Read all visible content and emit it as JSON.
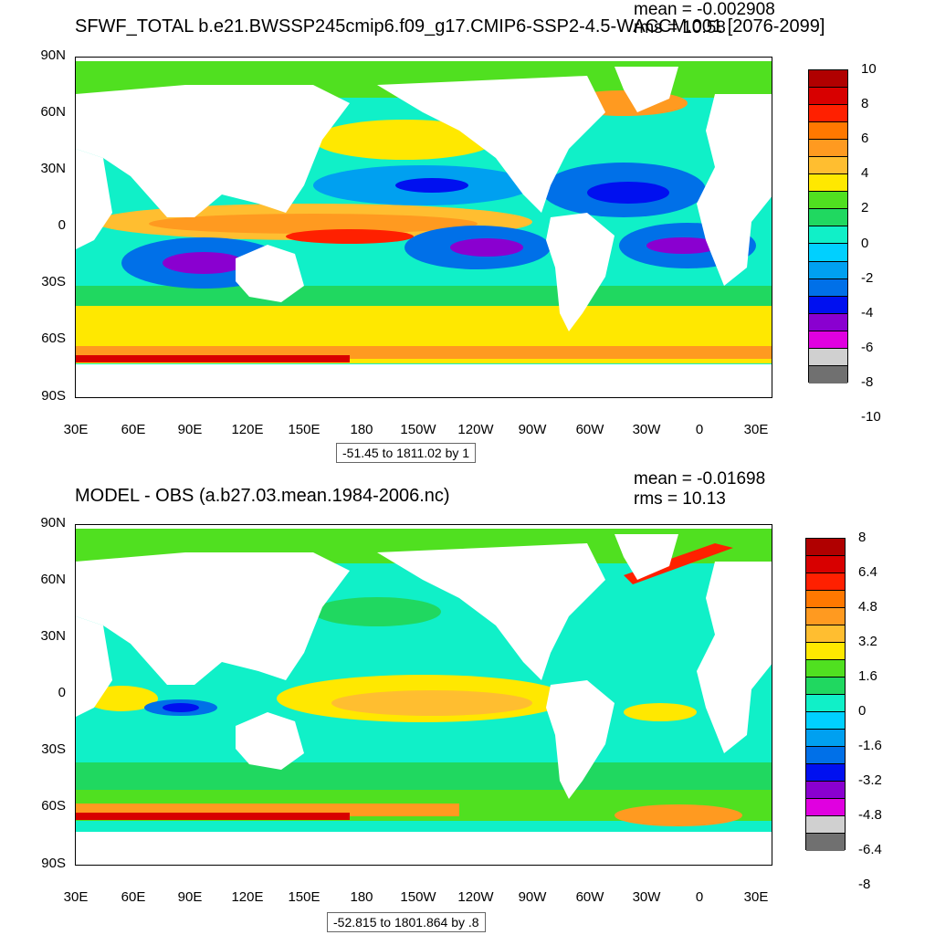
{
  "panels": [
    {
      "title": "SFWF_TOTAL b.e21.BWSSP245cmip6.f09_g17.CMIP6-SSP2-4.5-WACCM.001 [2076-2099]",
      "mean": "mean = -0.002908",
      "rms": "rms = 10.58",
      "range": "-51.45 to 1811.02 by 1",
      "colorbar": {
        "labels": [
          "10",
          "8",
          "6",
          "4",
          "2",
          "0",
          "-2",
          "-4",
          "-6",
          "-8",
          "-10"
        ],
        "colors": [
          "#b00000",
          "#d80000",
          "#ff2000",
          "#ff7800",
          "#ff9a20",
          "#ffbe30",
          "#ffe800",
          "#50e020",
          "#20d860",
          "#10f0c8",
          "#00d0ff",
          "#00a0f0",
          "#0070e8",
          "#0010f0",
          "#8a00d0",
          "#e000e0",
          "#d0d0d0",
          "#707070"
        ]
      },
      "lat_labels": [
        "90N",
        "60N",
        "30N",
        "0",
        "30S",
        "60S",
        "90S"
      ],
      "lon_labels": [
        "30E",
        "60E",
        "90E",
        "120E",
        "150E",
        "180",
        "150W",
        "120W",
        "90W",
        "60W",
        "30W",
        "0",
        "30E"
      ]
    },
    {
      "title": "MODEL - OBS (a.b27.03.mean.1984-2006.nc)",
      "mean": "mean = -0.01698",
      "rms": "rms = 10.13",
      "range": "-52.815 to 1801.864 by .8",
      "colorbar": {
        "labels": [
          "8",
          "6.4",
          "4.8",
          "3.2",
          "1.6",
          "0",
          "-1.6",
          "-3.2",
          "-4.8",
          "-6.4",
          "-8"
        ],
        "colors": [
          "#b00000",
          "#d80000",
          "#ff2000",
          "#ff7800",
          "#ff9a20",
          "#ffbe30",
          "#ffe800",
          "#50e020",
          "#20d860",
          "#10f0c8",
          "#00d0ff",
          "#00a0f0",
          "#0070e8",
          "#0010f0",
          "#8a00d0",
          "#e000e0",
          "#d0d0d0",
          "#707070"
        ]
      },
      "lat_labels": [
        "90N",
        "60N",
        "30N",
        "0",
        "30S",
        "60S",
        "90S"
      ],
      "lon_labels": [
        "30E",
        "60E",
        "90E",
        "120E",
        "150E",
        "180",
        "150W",
        "120W",
        "90W",
        "60W",
        "30W",
        "0",
        "30E"
      ]
    }
  ],
  "palette": {
    "ocean_base_top": "#00d0ff",
    "ocean_base_bottom": "#10f0c8",
    "land": "#ffffff"
  }
}
